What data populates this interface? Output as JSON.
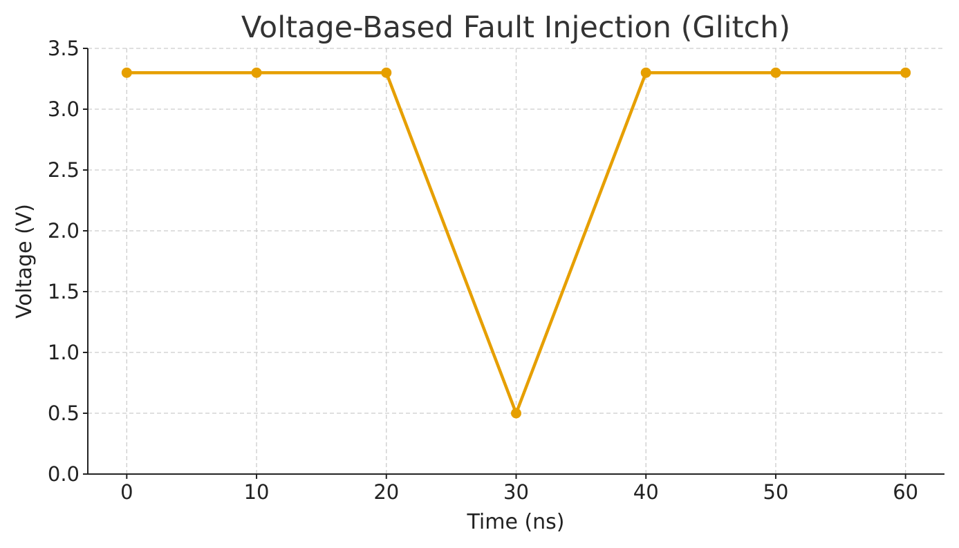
{
  "chart_data": {
    "type": "line",
    "title": "Voltage-Based Fault Injection (Glitch)",
    "xlabel": "Time (ns)",
    "ylabel": "Voltage (V)",
    "x": [
      0,
      10,
      20,
      30,
      40,
      50,
      60
    ],
    "series": [
      {
        "values": [
          3.3,
          3.3,
          3.3,
          0.5,
          3.3,
          3.3,
          3.3
        ],
        "color": "#E69F00",
        "marker": "circle"
      }
    ],
    "xlim": [
      -3,
      63
    ],
    "ylim": [
      0,
      3.5
    ],
    "xticks": [
      "0",
      "10",
      "20",
      "30",
      "40",
      "50",
      "60"
    ],
    "yticks": [
      "0.0",
      "0.5",
      "1.0",
      "1.5",
      "2.0",
      "2.5",
      "3.0",
      "3.5"
    ],
    "grid": true,
    "legend": "none"
  }
}
